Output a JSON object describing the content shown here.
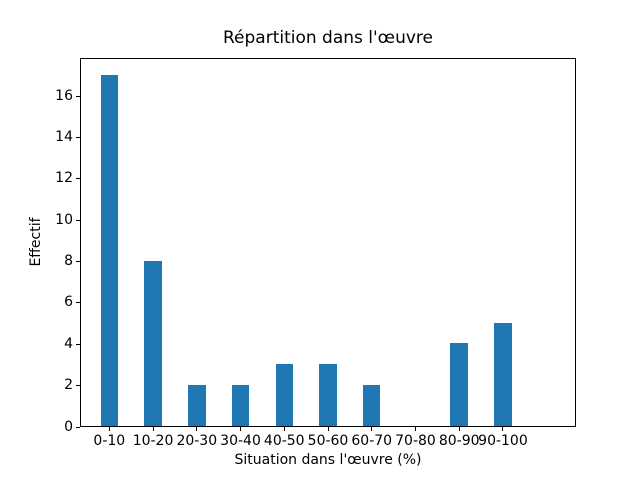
{
  "figure": {
    "background_color": "#ffffff",
    "text_color": "#000000"
  },
  "chart_data": {
    "type": "bar",
    "title": "Répartition dans l'œuvre",
    "xlabel": "Situation dans l'œuvre (%)",
    "ylabel": "Effectif",
    "categories": [
      "0-10",
      "10-20",
      "20-30",
      "30-40",
      "40-50",
      "50-60",
      "60-70",
      "70-80",
      "80-90",
      "90-100"
    ],
    "values": [
      17,
      8,
      2,
      2,
      3,
      3,
      2,
      0,
      4,
      5
    ],
    "yticks": [
      0,
      2,
      4,
      6,
      8,
      10,
      12,
      14,
      16
    ],
    "ylim": [
      0,
      17.85
    ],
    "bar_color": "#1f77b4",
    "grid": false,
    "legend_position": "none"
  }
}
